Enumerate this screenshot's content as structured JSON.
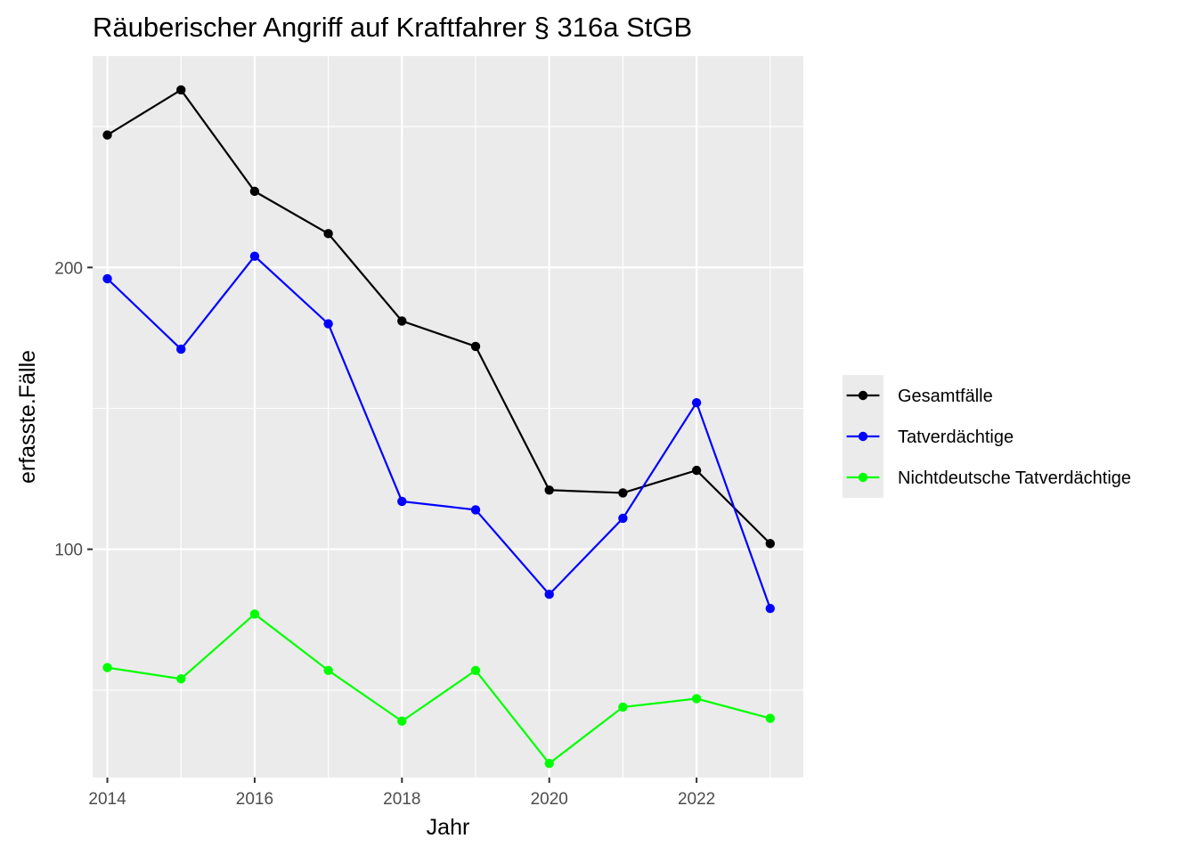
{
  "chart_data": {
    "type": "line",
    "title": "Räuberischer Angriff auf Kraftfahrer § 316a StGB",
    "xlabel": "Jahr",
    "ylabel": "erfasste.Fälle",
    "x": [
      2014,
      2015,
      2016,
      2017,
      2018,
      2019,
      2020,
      2021,
      2022,
      2023
    ],
    "xlim": [
      2013.8,
      2023.45
    ],
    "ylim": [
      19,
      275
    ],
    "x_ticks": [
      "2014",
      "2016",
      "2018",
      "2020",
      "2022"
    ],
    "y_ticks": [
      "100",
      "200"
    ],
    "grid": true,
    "legend_position": "right",
    "series": [
      {
        "name": "Gesamtfälle",
        "color": "#000000",
        "values": [
          247,
          263,
          227,
          212,
          181,
          172,
          121,
          120,
          128,
          102
        ]
      },
      {
        "name": "Tatverdächtige",
        "color": "#0000ff",
        "values": [
          196,
          171,
          204,
          180,
          117,
          114,
          84,
          111,
          152,
          79
        ]
      },
      {
        "name": "Nichtdeutsche Tatverdächtige",
        "color": "#00ff00",
        "values": [
          58,
          54,
          77,
          57,
          39,
          57,
          24,
          44,
          47,
          40
        ]
      }
    ]
  }
}
